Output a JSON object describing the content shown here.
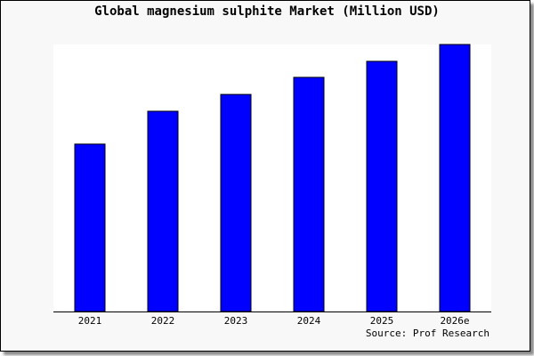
{
  "chart_data": {
    "type": "bar",
    "title": "Global magnesium sulphite Market (Million USD)",
    "categories": [
      "2021",
      "2022",
      "2023",
      "2024",
      "2025",
      "2026e"
    ],
    "values": [
      62.7,
      75.0,
      81.3,
      87.7,
      93.7,
      100.0
    ],
    "xlabel": "",
    "ylabel": "",
    "ylim": [
      0,
      100
    ],
    "grid": false,
    "bar_color": "#0000ff",
    "source": "Source: Prof Research"
  }
}
